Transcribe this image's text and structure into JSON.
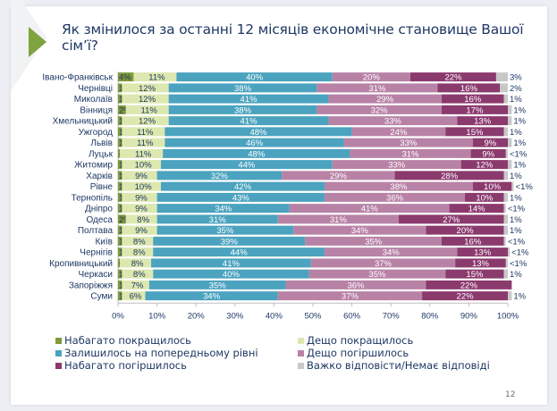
{
  "slide": {
    "title": "Як змінилося за останні 12 місяців економічне становище Вашої сім’ї?",
    "page_number": "12",
    "accent_color": "#7fa33e"
  },
  "chart_data": {
    "type": "bar",
    "orientation": "horizontal",
    "stacked": true,
    "percent": true,
    "title": "Як змінилося за останні 12 місяців економічне становище Вашої сім’ї?",
    "xlabel": "",
    "ylabel": "",
    "xlim": [
      0,
      100
    ],
    "x_ticks": [
      "0%",
      "10%",
      "20%",
      "30%",
      "40%",
      "50%",
      "60%",
      "70%",
      "80%",
      "90%",
      "100%"
    ],
    "grid": false,
    "legend_position": "bottom",
    "categories": [
      "Івано-Франківськ",
      "Чернівці",
      "Миколаїв",
      "Вінниця",
      "Хмельницький",
      "Ужгород",
      "Львів",
      "Луцьк",
      "Житомир",
      "Харків",
      "Рівне",
      "Тернопіль",
      "Дніпро",
      "Одеса",
      "Полтава",
      "Київ",
      "Чернігів",
      "Кропивницький",
      "Черкаси",
      "Запоріжжя",
      "Суми"
    ],
    "series": [
      {
        "name": "Набагато покращилось",
        "color": "#7f9a3a",
        "values": [
          4,
          1,
          1,
          2,
          1,
          1,
          1,
          0.5,
          1,
          1,
          1,
          1,
          1,
          2,
          1,
          1,
          1,
          0.5,
          1,
          1,
          1
        ],
        "labels": [
          "4%",
          "1%",
          "1%",
          "2%",
          "1%",
          "1%",
          "1%",
          "<1%",
          "1%",
          "1%",
          "1%",
          "1%",
          "1%",
          "2%",
          "1%",
          "1%",
          "1%",
          "<1%",
          "1%",
          "1%",
          "1%"
        ]
      },
      {
        "name": "Дещо покращилось",
        "color": "#dde8b0",
        "values": [
          11,
          12,
          12,
          11,
          12,
          11,
          11,
          11,
          10,
          9,
          10,
          9,
          9,
          8,
          9,
          8,
          8,
          8,
          8,
          7,
          6
        ],
        "labels": [
          "11%",
          "12%",
          "12%",
          "11%",
          "12%",
          "11%",
          "11%",
          "11%",
          "10%",
          "9%",
          "10%",
          "9%",
          "9%",
          "8%",
          "9%",
          "8%",
          "8%",
          "8%",
          "8%",
          "7%",
          "6%"
        ]
      },
      {
        "name": "Залишилось на попередньому рівні",
        "color": "#4ba3bf",
        "values": [
          40,
          38,
          41,
          38,
          41,
          48,
          46,
          48,
          44,
          32,
          42,
          43,
          34,
          31,
          35,
          39,
          44,
          41,
          40,
          35,
          34
        ],
        "labels": [
          "40%",
          "38%",
          "41%",
          "38%",
          "41%",
          "48%",
          "46%",
          "48%",
          "44%",
          "32%",
          "42%",
          "43%",
          "34%",
          "31%",
          "35%",
          "39%",
          "44%",
          "41%",
          "40%",
          "35%",
          "34%"
        ]
      },
      {
        "name": "Дещо погіршилось",
        "color": "#b882a6",
        "values": [
          20,
          31,
          29,
          32,
          33,
          24,
          33,
          31,
          33,
          29,
          38,
          36,
          41,
          31,
          34,
          35,
          34,
          37,
          35,
          36,
          37
        ],
        "labels": [
          "20%",
          "31%",
          "29%",
          "32%",
          "33%",
          "24%",
          "33%",
          "31%",
          "33%",
          "29%",
          "38%",
          "36%",
          "41%",
          "31%",
          "34%",
          "35%",
          "34%",
          "37%",
          "35%",
          "36%",
          "37%"
        ]
      },
      {
        "name": "Набагато погіршилось",
        "color": "#8b3a6e",
        "values": [
          22,
          16,
          16,
          17,
          13,
          15,
          9,
          9,
          12,
          28,
          10,
          10,
          14,
          27,
          20,
          16,
          13,
          13,
          15,
          22,
          22
        ],
        "labels": [
          "22%",
          "16%",
          "16%",
          "17%",
          "13%",
          "15%",
          "9%",
          "9%",
          "12%",
          "28%",
          "10%",
          "10%",
          "14%",
          "27%",
          "20%",
          "16%",
          "13%",
          "13%",
          "15%",
          "22%",
          "22%"
        ]
      },
      {
        "name": "Важко відповісти/Немає відповіді",
        "color": "#c8c8c8",
        "values": [
          3,
          2,
          1,
          1,
          1,
          1,
          1,
          0.5,
          1,
          1,
          0.5,
          1,
          0.5,
          1,
          1,
          0.5,
          0.5,
          0.5,
          1,
          0,
          1
        ],
        "labels": [
          "3%",
          "2%",
          "1%",
          "1%",
          "1%",
          "1%",
          "1%",
          "<1%",
          "1%",
          "1%",
          "<1%",
          "1%",
          "<1%",
          "1%",
          "1%",
          "<1%",
          "<1%",
          "<1%",
          "1%",
          "",
          "1%"
        ]
      }
    ]
  }
}
